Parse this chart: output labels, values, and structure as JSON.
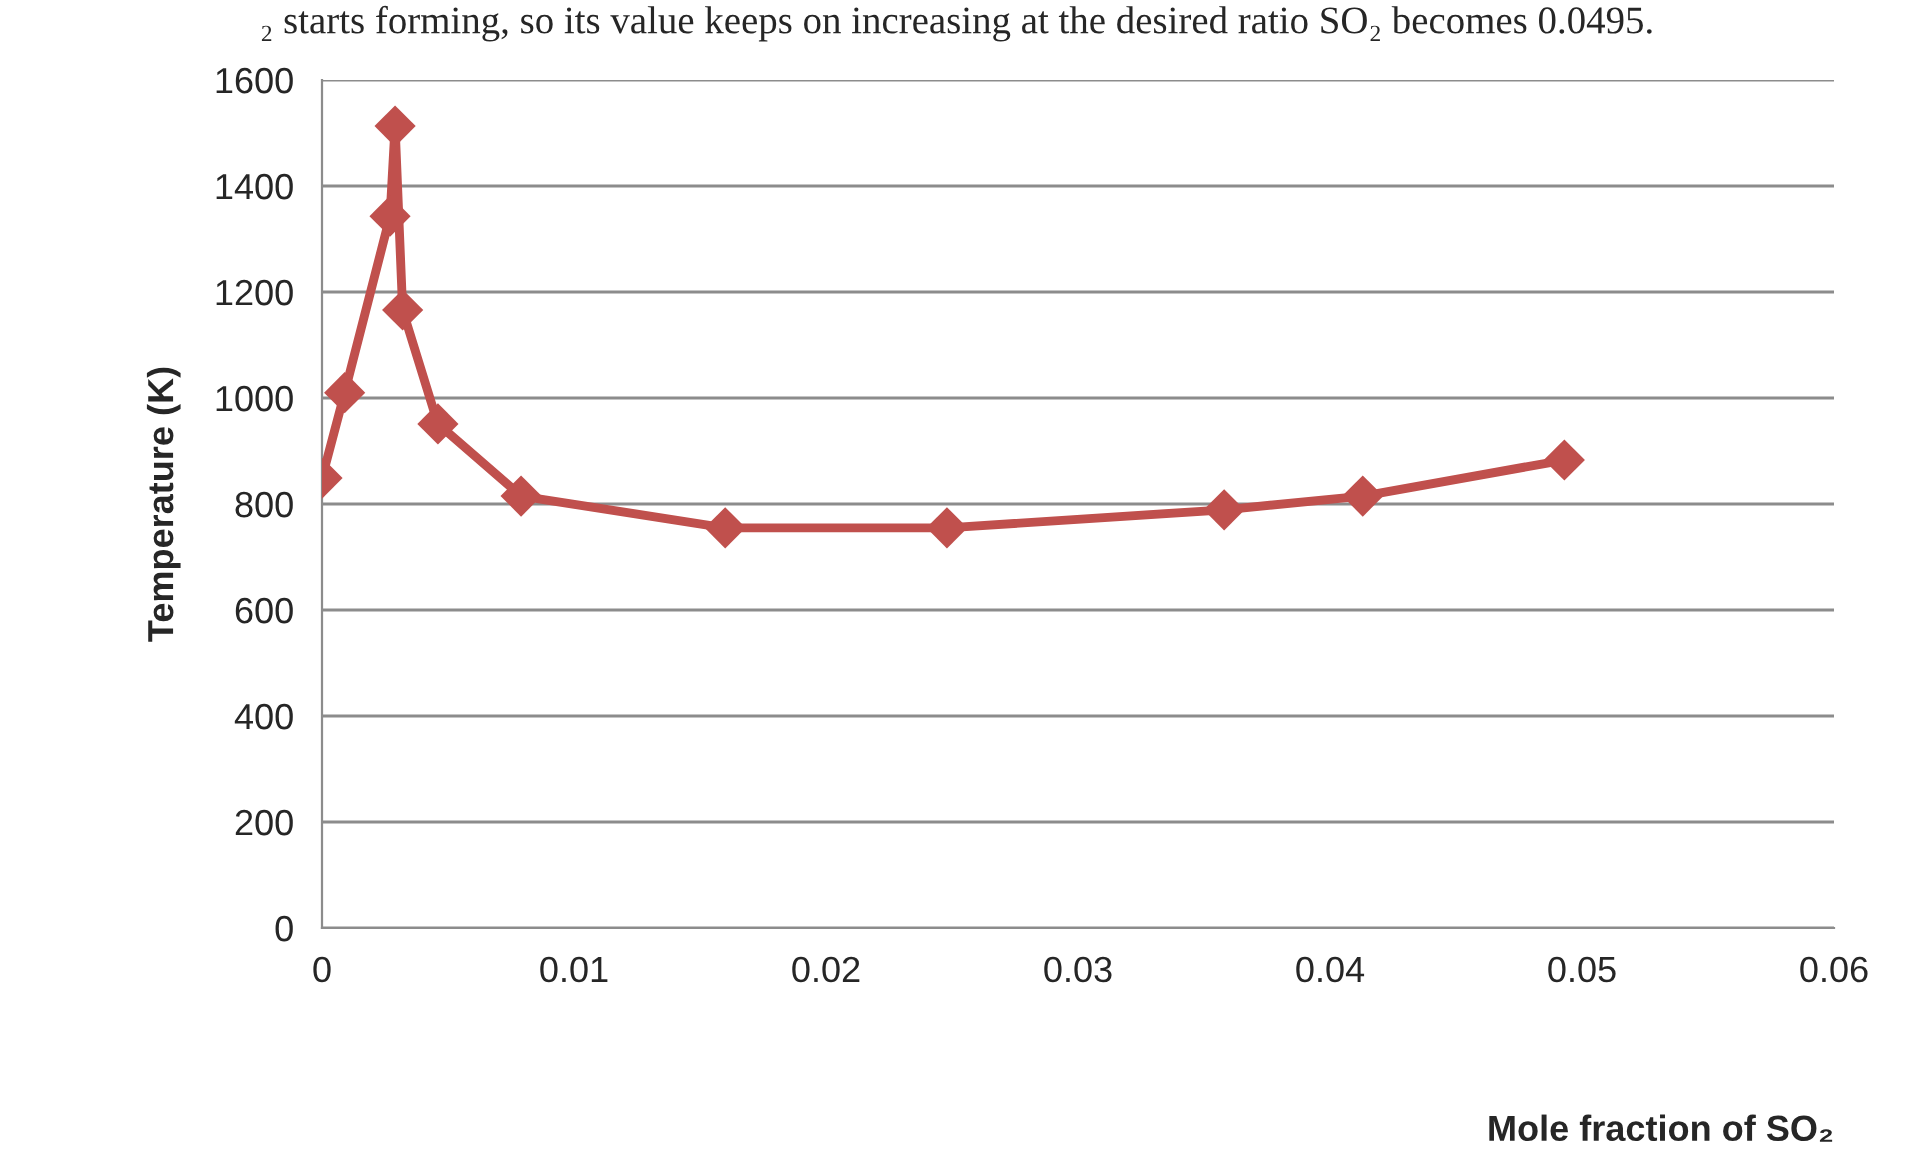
{
  "chart_data": {
    "type": "line",
    "xlabel": "Mole fraction of SO₂",
    "ylabel": "Temperature (K)",
    "annotations": [
      "₂ starts forming, so its value keeps on increasing at the desired ratio SO₂ becomes 0.0495."
    ],
    "x": [
      0,
      0.0009,
      0.0027,
      0.0029,
      0.0032,
      0.0046,
      0.0079,
      0.016,
      0.0248,
      0.0358,
      0.0413,
      0.0493
    ],
    "series": [
      {
        "color": "#c0504d",
        "values": [
          849,
          1010,
          1343,
          1513,
          1166,
          951,
          815,
          755,
          755,
          789,
          815,
          883
        ]
      }
    ],
    "xlim": [
      0,
      0.06
    ],
    "xticks": [
      0,
      0.01,
      0.02,
      0.03,
      0.04,
      0.05,
      0.06
    ],
    "ylim": [
      0,
      1600
    ],
    "yticks": [
      0,
      200,
      400,
      600,
      800,
      1000,
      1200,
      1400,
      1600
    ],
    "grid": "y",
    "marker": "diamond",
    "line_style": "solid",
    "legend": false
  }
}
